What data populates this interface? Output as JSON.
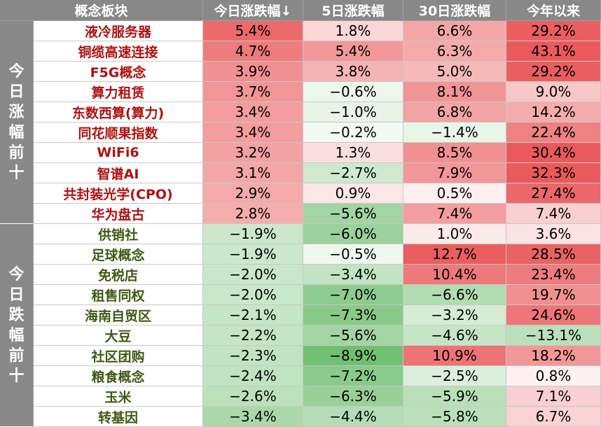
{
  "headers": [
    "概念板块",
    "今日涨跌幅↓",
    "5日涨跌幅",
    "30日涨跌幅",
    "今年以来"
  ],
  "groups": [
    {
      "label": "今日涨幅前十",
      "name_color": "#b01010",
      "rows": [
        {
          "name": "液冷服务器",
          "values": [
            "5.4%",
            "1.8%",
            "6.6%",
            "29.2%"
          ]
        },
        {
          "name": "铜缆高速连接",
          "values": [
            "4.7%",
            "5.4%",
            "6.3%",
            "43.1%"
          ]
        },
        {
          "name": "F5G概念",
          "values": [
            "3.9%",
            "3.8%",
            "5.0%",
            "29.2%"
          ]
        },
        {
          "name": "算力租赁",
          "values": [
            "3.7%",
            "−0.6%",
            "8.1%",
            "9.0%"
          ]
        },
        {
          "name": "东数西算(算力)",
          "values": [
            "3.4%",
            "−1.0%",
            "6.8%",
            "14.2%"
          ]
        },
        {
          "name": "同花顺果指数",
          "values": [
            "3.4%",
            "−0.2%",
            "−1.4%",
            "22.4%"
          ]
        },
        {
          "name": "WiFi6",
          "values": [
            "3.2%",
            "1.3%",
            "8.5%",
            "30.4%"
          ]
        },
        {
          "name": "智谱AI",
          "values": [
            "3.1%",
            "−2.7%",
            "7.9%",
            "32.3%"
          ]
        },
        {
          "name": "共封装光学(CPO)",
          "values": [
            "2.9%",
            "0.9%",
            "0.5%",
            "27.4%"
          ]
        },
        {
          "name": "华为盘古",
          "values": [
            "2.8%",
            "−5.6%",
            "7.4%",
            "7.4%"
          ]
        }
      ]
    },
    {
      "label": "今日跌幅前十",
      "name_color": "#3e5a14",
      "rows": [
        {
          "name": "供销社",
          "values": [
            "−1.9%",
            "−6.0%",
            "1.0%",
            "3.6%"
          ]
        },
        {
          "name": "足球概念",
          "values": [
            "−1.9%",
            "−0.5%",
            "12.7%",
            "28.5%"
          ]
        },
        {
          "name": "免税店",
          "values": [
            "−2.0%",
            "−3.4%",
            "10.4%",
            "23.4%"
          ]
        },
        {
          "name": "租售同权",
          "values": [
            "−2.0%",
            "−7.0%",
            "−6.6%",
            "19.7%"
          ]
        },
        {
          "name": "海南自贸区",
          "values": [
            "−2.1%",
            "−7.3%",
            "−3.2%",
            "24.6%"
          ]
        },
        {
          "name": "大豆",
          "values": [
            "−2.2%",
            "−5.6%",
            "−4.6%",
            "−13.1%"
          ]
        },
        {
          "name": "社区团购",
          "values": [
            "−2.3%",
            "−8.9%",
            "10.9%",
            "18.2%"
          ]
        },
        {
          "name": "粮食概念",
          "values": [
            "−2.4%",
            "−7.2%",
            "−2.5%",
            "0.8%"
          ]
        },
        {
          "name": "玉米",
          "values": [
            "−2.6%",
            "−6.3%",
            "−5.9%",
            "7.1%"
          ]
        },
        {
          "name": "转基因",
          "values": [
            "−3.4%",
            "−4.4%",
            "−5.8%",
            "6.7%"
          ]
        }
      ]
    }
  ],
  "colors": {
    "header_bg": "#888888",
    "positive": "#ea5a5c",
    "negative": "#6fbe70"
  }
}
